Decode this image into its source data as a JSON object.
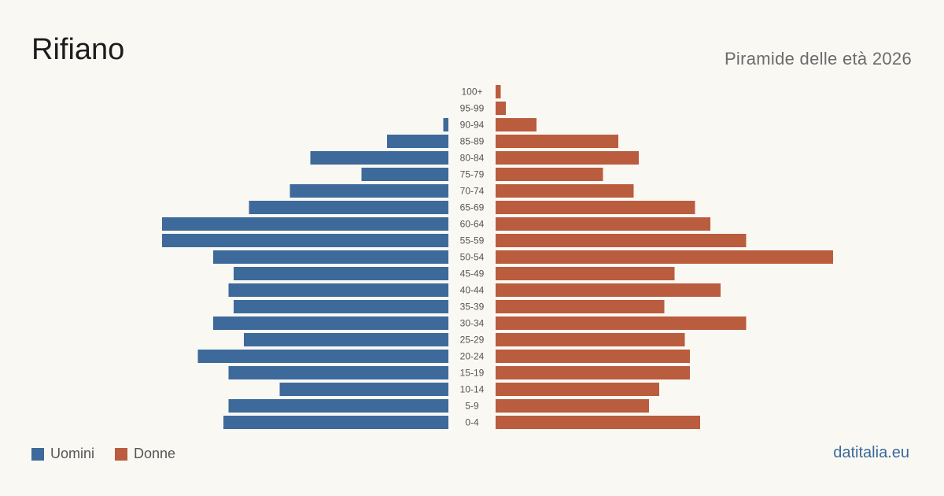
{
  "header": {
    "title": "Rifiano",
    "subtitle": "Piramide delle età 2026"
  },
  "legend": {
    "men_label": "Uomini",
    "women_label": "Donne"
  },
  "footer": {
    "source": "datitalia.eu"
  },
  "colors": {
    "men": "#3d6a9a",
    "women": "#ba5c3e"
  },
  "chart_data": {
    "type": "bar",
    "orientation": "horizontal-pyramid",
    "title": "Rifiano",
    "subtitle": "Piramide delle età 2026",
    "categories": [
      "100+",
      "95-99",
      "90-94",
      "85-89",
      "80-84",
      "75-79",
      "70-74",
      "65-69",
      "60-64",
      "55-59",
      "50-54",
      "45-49",
      "40-44",
      "35-39",
      "30-34",
      "25-29",
      "20-24",
      "15-19",
      "10-14",
      "5-9",
      "0-4"
    ],
    "series": [
      {
        "name": "Uomini",
        "values": [
          0,
          0,
          1,
          12,
          27,
          17,
          31,
          39,
          56,
          56,
          46,
          42,
          43,
          42,
          46,
          40,
          49,
          43,
          33,
          43,
          44
        ]
      },
      {
        "name": "Donne",
        "values": [
          1,
          2,
          8,
          24,
          28,
          21,
          27,
          39,
          42,
          49,
          66,
          35,
          44,
          33,
          49,
          37,
          38,
          38,
          32,
          30,
          40
        ]
      }
    ],
    "xlim": [
      0,
      66
    ],
    "legend_position": "bottom-left",
    "grid": false
  }
}
